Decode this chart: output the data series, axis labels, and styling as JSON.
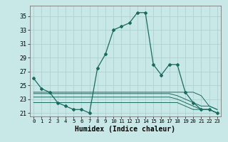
{
  "x": [
    0,
    1,
    2,
    3,
    4,
    5,
    6,
    7,
    8,
    9,
    10,
    11,
    12,
    13,
    14,
    15,
    16,
    17,
    18,
    19,
    20,
    21,
    22,
    23
  ],
  "main_line": [
    26,
    24.5,
    24,
    22.5,
    22,
    21.5,
    21.5,
    21,
    27.5,
    29.5,
    33,
    33.5,
    34,
    35.5,
    35.5,
    28,
    26.5,
    28,
    28,
    24,
    22.5,
    21.5,
    21.5,
    21
  ],
  "flat_line1": [
    24,
    24,
    24,
    24,
    24,
    24,
    24,
    24,
    24,
    24,
    24,
    24,
    24,
    24,
    24,
    24,
    24,
    24,
    24,
    24,
    24,
    23.5,
    22,
    21.5
  ],
  "flat_line2": [
    23.8,
    23.8,
    23.8,
    23.8,
    23.8,
    23.8,
    23.8,
    23.8,
    23.8,
    23.8,
    23.8,
    23.8,
    23.8,
    23.8,
    23.8,
    23.8,
    23.8,
    23.8,
    23.5,
    23,
    22.5,
    22,
    22,
    21.5
  ],
  "flat_line3": [
    23.3,
    23.3,
    23.3,
    23.3,
    23.3,
    23.3,
    23.3,
    23.3,
    23.3,
    23.3,
    23.3,
    23.3,
    23.3,
    23.3,
    23.3,
    23.3,
    23.3,
    23.3,
    23,
    22.5,
    22,
    21.5,
    21.5,
    21
  ],
  "flat_line4": [
    22.5,
    22.5,
    22.5,
    22.5,
    22.5,
    22.5,
    22.5,
    22.5,
    22.5,
    22.5,
    22.5,
    22.5,
    22.5,
    22.5,
    22.5,
    22.5,
    22.5,
    22.5,
    22.5,
    22,
    21.5,
    21.5,
    21.5,
    21
  ],
  "line_color": "#1a6b5e",
  "bg_color": "#c8e8e8",
  "grid_color": "#a8cece",
  "xlabel": "Humidex (Indice chaleur)",
  "yticks": [
    21,
    23,
    25,
    27,
    29,
    31,
    33,
    35
  ],
  "xtick_labels": [
    "0",
    "1",
    "2",
    "3",
    "4",
    "5",
    "6",
    "7",
    "8",
    "9",
    "10",
    "11",
    "12",
    "13",
    "14",
    "15",
    "16",
    "17",
    "18",
    "19",
    "20",
    "21",
    "22",
    "23"
  ],
  "ylim": [
    20.5,
    36.5
  ],
  "xlim": [
    -0.5,
    23.5
  ]
}
